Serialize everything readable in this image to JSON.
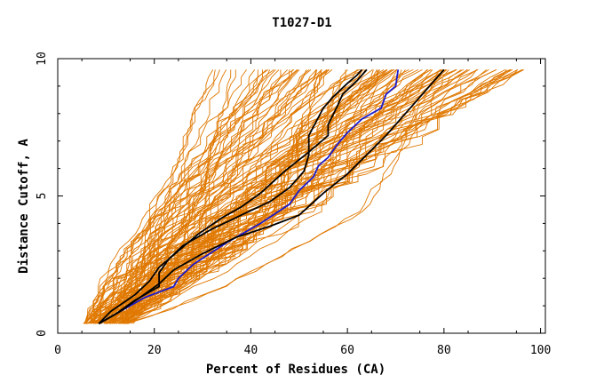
{
  "chart_data": {
    "type": "line",
    "title": "T1027-D1",
    "xlabel": "Percent of Residues (CA)",
    "ylabel": "Distance Cutoff, A",
    "xlim": [
      0,
      101
    ],
    "ylim": [
      0,
      10
    ],
    "x_ticks": [
      0,
      20,
      40,
      60,
      80,
      100
    ],
    "y_ticks": [
      0,
      5,
      10
    ],
    "x_tick_labels": [
      "0",
      "20",
      "40",
      "60",
      "80",
      "100"
    ],
    "y_tick_labels": [
      "0",
      "5",
      "10"
    ],
    "grid": false,
    "colors": {
      "background_models": "#e07800",
      "highlight_black": "#000000",
      "highlight_blue": "#1a1acc"
    },
    "highlight_series": [
      {
        "color": "#1a1acc",
        "points": [
          [
            8.5,
            0.35
          ],
          [
            12,
            0.7
          ],
          [
            18,
            1.3
          ],
          [
            24,
            1.7
          ],
          [
            25,
            2.0
          ],
          [
            28,
            2.5
          ],
          [
            35,
            3.3
          ],
          [
            42,
            4.0
          ],
          [
            48,
            4.7
          ],
          [
            50,
            5.2
          ],
          [
            53,
            5.7
          ],
          [
            54,
            6.1
          ],
          [
            56,
            6.4
          ],
          [
            58,
            6.9
          ],
          [
            60,
            7.3
          ],
          [
            63,
            7.8
          ],
          [
            67,
            8.2
          ],
          [
            68,
            8.7
          ],
          [
            70,
            9.0
          ],
          [
            70.5,
            9.6
          ]
        ]
      },
      {
        "color": "#000000",
        "points": [
          [
            8.5,
            0.35
          ],
          [
            12,
            0.7
          ],
          [
            16,
            1.2
          ],
          [
            21,
            1.7
          ],
          [
            21,
            2.2
          ],
          [
            23,
            2.7
          ],
          [
            26,
            3.2
          ],
          [
            32,
            3.8
          ],
          [
            38,
            4.3
          ],
          [
            44,
            4.8
          ],
          [
            48,
            5.3
          ],
          [
            51,
            5.9
          ],
          [
            52,
            6.5
          ],
          [
            52,
            7.2
          ],
          [
            55,
            8.2
          ],
          [
            57,
            8.6
          ],
          [
            60,
            9.1
          ],
          [
            62,
            9.4
          ],
          [
            63,
            9.6
          ]
        ]
      },
      {
        "color": "#000000",
        "points": [
          [
            8.5,
            0.35
          ],
          [
            11,
            0.8
          ],
          [
            16,
            1.4
          ],
          [
            19,
            1.9
          ],
          [
            21,
            2.4
          ],
          [
            25,
            3.0
          ],
          [
            29,
            3.6
          ],
          [
            34,
            4.2
          ],
          [
            38,
            4.6
          ],
          [
            42,
            5.1
          ],
          [
            47,
            5.9
          ],
          [
            52,
            6.6
          ],
          [
            56,
            7.2
          ],
          [
            56,
            7.6
          ],
          [
            58,
            8.3
          ],
          [
            59,
            8.7
          ],
          [
            62,
            9.2
          ],
          [
            64,
            9.6
          ]
        ]
      },
      {
        "color": "#000000",
        "points": [
          [
            8.5,
            0.35
          ],
          [
            13,
            0.8
          ],
          [
            17,
            1.3
          ],
          [
            21,
            1.8
          ],
          [
            24,
            2.3
          ],
          [
            30,
            2.9
          ],
          [
            37,
            3.5
          ],
          [
            44,
            3.9
          ],
          [
            50,
            4.3
          ],
          [
            55,
            5.1
          ],
          [
            60,
            5.8
          ],
          [
            64,
            6.5
          ],
          [
            68,
            7.2
          ],
          [
            72,
            8.0
          ],
          [
            75,
            8.6
          ],
          [
            78,
            9.2
          ],
          [
            80,
            9.6
          ]
        ]
      }
    ],
    "background_series_count": 110,
    "background_band": {
      "x_start_min": 5,
      "x_start_max": 15,
      "x_end_min": 30,
      "x_end_max": 98,
      "y_top": 9.6,
      "y_bottom": 0.35
    }
  }
}
